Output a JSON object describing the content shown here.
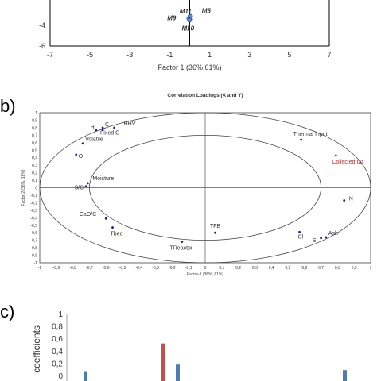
{
  "chart_data": [
    {
      "panel": "a",
      "type": "scatter",
      "xlabel": "Factor 1 (36%,61%)",
      "xlim": [
        -7,
        7
      ],
      "ylim": [
        -6,
        0
      ],
      "xticks": [
        "-7",
        "-5",
        "-3",
        "-1",
        "1",
        "3",
        "5",
        "7"
      ],
      "yticks": [
        "-4",
        "-6"
      ],
      "points": [
        {
          "label": "M5",
          "x": 0.05,
          "y": -3.1
        },
        {
          "label": "M9",
          "x": -0.05,
          "y": -3.35
        },
        {
          "label": "M11",
          "x": 0.05,
          "y": -3.4
        },
        {
          "label": "M10",
          "x": 0.0,
          "y": -3.5
        }
      ]
    },
    {
      "panel": "b",
      "type": "scatter",
      "title": "Correlation Loadings (X and Y)",
      "xlabel": "Factor-1 (36%, 61%)",
      "ylabel": "Factor-2 (36%, 18%)",
      "xlim": [
        -1,
        1
      ],
      "ylim": [
        -1,
        1
      ],
      "xticks": [
        "-1",
        "-0,9",
        "-0,8",
        "-0,7",
        "-0,6",
        "-0,5",
        "-0,4",
        "-0,3",
        "-0,2",
        "-0,1",
        "0",
        "0,1",
        "0,2",
        "0,3",
        "0,4",
        "0,5",
        "0,6",
        "0,7",
        "0,8",
        "0,9",
        "1"
      ],
      "yticks": [
        "1",
        "0,9",
        "0,8",
        "0,7",
        "0,6",
        "0,5",
        "0,4",
        "0,3",
        "0,2",
        "0,1",
        "0",
        "-0,1",
        "-0,2",
        "-0,3",
        "-0,4",
        "-0,5",
        "-0,6",
        "-0,7",
        "-0,8",
        "-0,9",
        "-1"
      ],
      "points": [
        {
          "label": "C",
          "x": -0.62,
          "y": 0.8,
          "color": "#1f1f8f"
        },
        {
          "label": "H",
          "x": -0.66,
          "y": 0.77,
          "color": "#1f1f8f"
        },
        {
          "label": "Fixed C",
          "x": -0.62,
          "y": 0.77,
          "color": "#1f1f8f"
        },
        {
          "label": "HHV",
          "x": -0.55,
          "y": 0.8,
          "color": "#1f1f8f"
        },
        {
          "label": "Volatile",
          "x": -0.74,
          "y": 0.59,
          "color": "#1f1f8f"
        },
        {
          "label": "O",
          "x": -0.78,
          "y": 0.44,
          "color": "#1f1f8f"
        },
        {
          "label": "Moisture",
          "x": -0.71,
          "y": 0.06,
          "color": "#1f1f8f"
        },
        {
          "label": "S/C",
          "x": -0.72,
          "y": 0.02,
          "color": "#1f1f8f"
        },
        {
          "label": "CaO/C",
          "x": -0.6,
          "y": -0.41,
          "color": "#1f1f8f"
        },
        {
          "label": "Tbed",
          "x": -0.56,
          "y": -0.53,
          "color": "#1f1f8f"
        },
        {
          "label": "TReactor",
          "x": -0.14,
          "y": -0.72,
          "color": "#1f1f8f"
        },
        {
          "label": "TFB",
          "x": 0.06,
          "y": -0.6,
          "color": "#1f1f8f"
        },
        {
          "label": "Thermal input",
          "x": 0.58,
          "y": 0.64,
          "color": "#1f1f8f"
        },
        {
          "label": "Collected tar",
          "x": 0.79,
          "y": 0.43,
          "color": "#b0303a"
        },
        {
          "label": "N",
          "x": 0.84,
          "y": -0.17,
          "color": "#1f1f8f"
        },
        {
          "label": "Cl",
          "x": 0.57,
          "y": -0.59,
          "color": "#1f1f8f"
        },
        {
          "label": "S",
          "x": 0.7,
          "y": -0.67,
          "color": "#1f1f8f"
        },
        {
          "label": "Ash",
          "x": 0.73,
          "y": -0.66,
          "color": "#1f1f8f"
        }
      ],
      "circles": [
        1.0,
        0.7
      ]
    },
    {
      "panel": "c",
      "type": "bar",
      "ylabel": "coefficients",
      "ylim": [
        0,
        1
      ],
      "yticks": [
        "1",
        "0,8",
        "0,6",
        "0,4",
        "0,2",
        "0"
      ],
      "bars": [
        {
          "value": 0.07,
          "color": "#4f7cb0"
        },
        {
          "value": 0.53,
          "color": "#c0504d"
        },
        {
          "value": 0.19,
          "color": "#4f7cb0"
        },
        {
          "value": 0.1,
          "color": "#4f7cb0"
        }
      ]
    }
  ],
  "labels": {
    "a": "",
    "b": "b)",
    "c": "c)"
  }
}
